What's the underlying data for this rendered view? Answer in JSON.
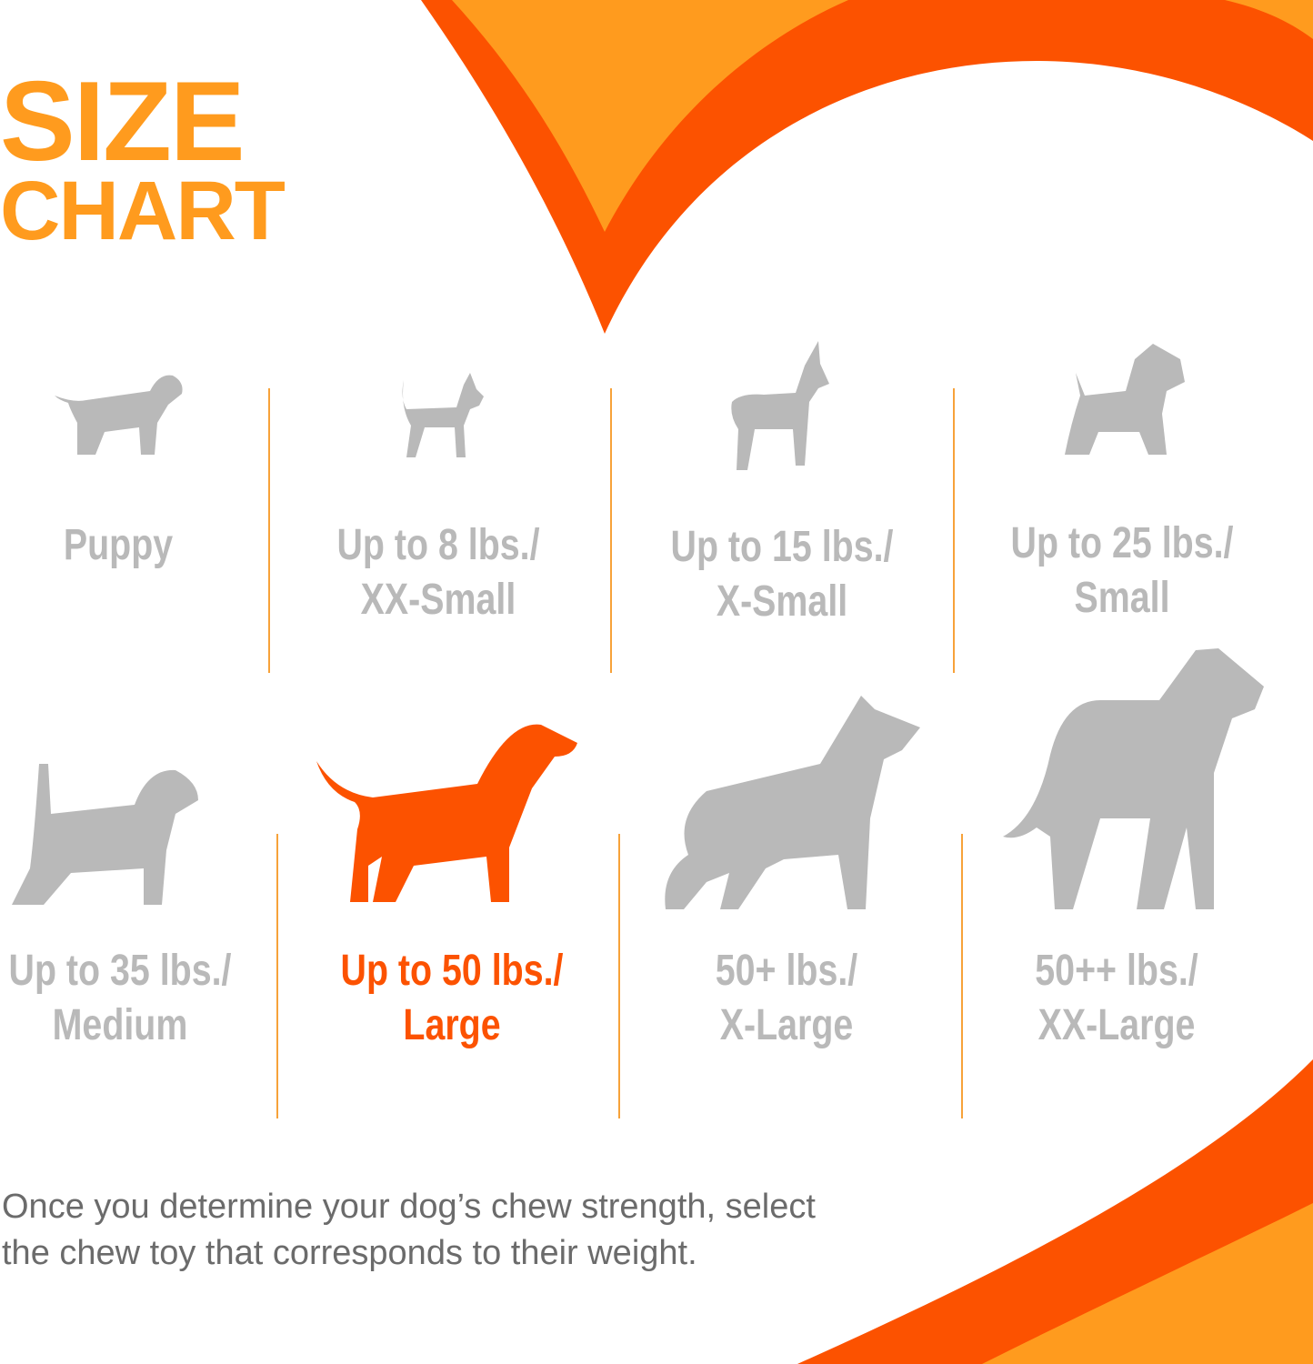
{
  "title": {
    "line1": "SIZE",
    "line2": "CHART"
  },
  "colors": {
    "orange": "#FF9B1E",
    "red_orange": "#FC5200",
    "gray": "#B9B9B9",
    "text_gray": "#6B6B6B"
  },
  "sizes": [
    {
      "line1": "Puppy",
      "line2": "",
      "icon": "puppy-icon",
      "highlighted": false
    },
    {
      "line1": "Up to 8 lbs./",
      "line2": "XX-Small",
      "icon": "chihuahua-icon",
      "highlighted": false
    },
    {
      "line1": "Up to 15 lbs./",
      "line2": "X-Small",
      "icon": "pinscher-icon",
      "highlighted": false
    },
    {
      "line1": "Up to 25 lbs./",
      "line2": "Small",
      "icon": "terrier-icon",
      "highlighted": false
    },
    {
      "line1": "Up to 35 lbs./",
      "line2": "Medium",
      "icon": "beagle-icon",
      "highlighted": false
    },
    {
      "line1": "Up to 50 lbs./",
      "line2": "Large",
      "icon": "labrador-icon",
      "highlighted": true
    },
    {
      "line1": "50+ lbs./",
      "line2": "X-Large",
      "icon": "shepherd-icon",
      "highlighted": false
    },
    {
      "line1": "50++ lbs./",
      "line2": "XX-Large",
      "icon": "great-dane-icon",
      "highlighted": false
    }
  ],
  "note": {
    "line1": "Once you determine your dog’s chew strength, select",
    "line2": "the chew toy that corresponds to their weight."
  }
}
